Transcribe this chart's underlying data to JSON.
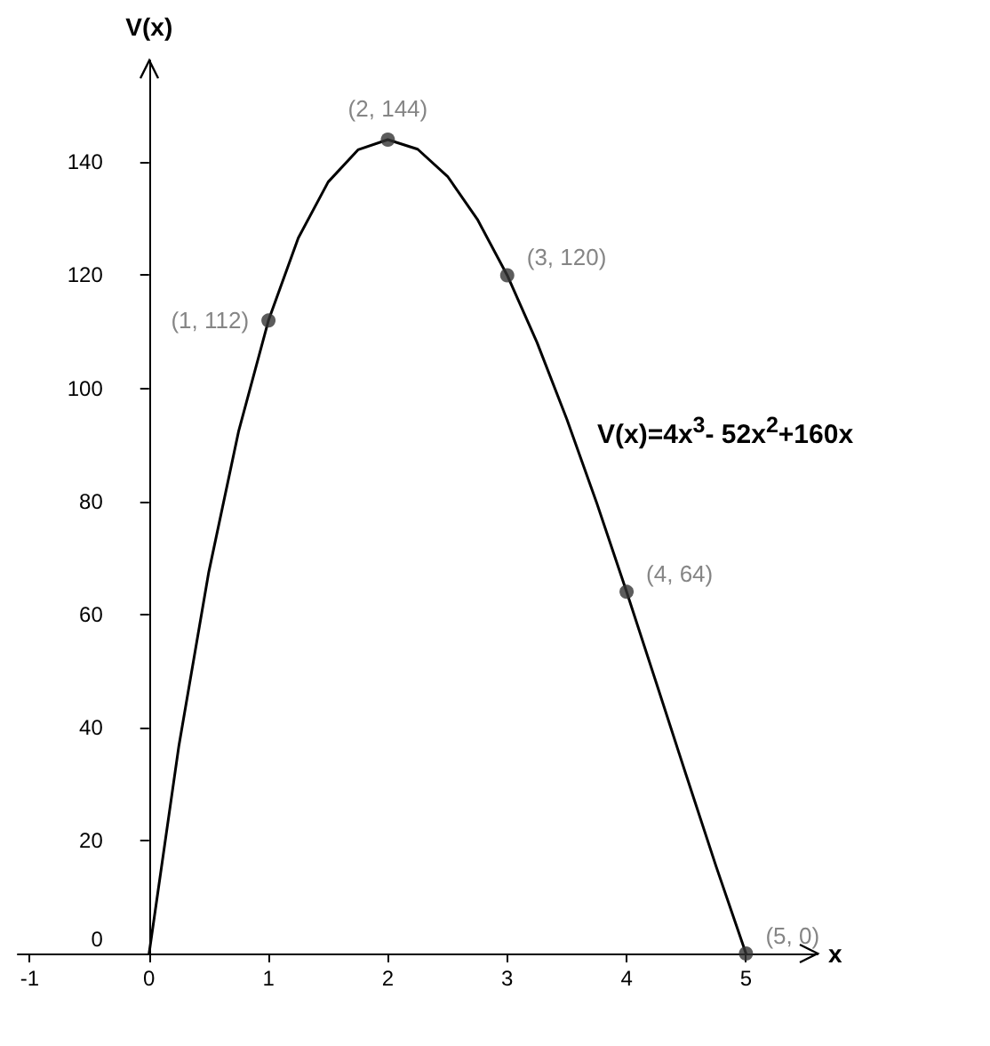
{
  "chart_data": {
    "type": "line",
    "xlabel": "x",
    "ylabel": "V(x)",
    "annotations": [
      "V(x)=4x$^{3}$- 52x$^{2}$+160x"
    ],
    "xlim": [
      -1.1,
      5.6
    ],
    "xticks": [
      -1,
      0,
      1,
      2,
      3,
      4,
      5
    ],
    "ylim": [
      0,
      158
    ],
    "yticks": [
      0,
      20,
      40,
      60,
      80,
      100,
      120,
      140
    ],
    "grid": false,
    "series": [
      {
        "color": "#000000",
        "marker": "none",
        "x": [
          0,
          0.25,
          0.5,
          0.75,
          1,
          1.25,
          1.5,
          1.75,
          2,
          2.25,
          2.5,
          2.75,
          3,
          3.25,
          3.5,
          3.75,
          4,
          4.25,
          4.5,
          4.75,
          5
        ],
        "values": [
          0,
          36.8,
          67.5,
          92.4,
          112,
          126.6,
          136.5,
          142.2,
          144,
          142.3,
          137.5,
          129.9,
          120,
          108.1,
          94.5,
          79.7,
          64,
          47.8,
          31.5,
          15.4,
          0
        ]
      },
      {
        "type": "scatter",
        "color": "#333333",
        "marker": "circle",
        "x": [
          1,
          2,
          3,
          4,
          5
        ],
        "values": [
          112,
          144,
          120,
          64,
          0
        ],
        "value_labels": [
          "(1, 112)",
          "(2, 144)",
          "(3, 120)",
          "(4, 64)",
          "(5, 0)"
        ]
      }
    ]
  }
}
